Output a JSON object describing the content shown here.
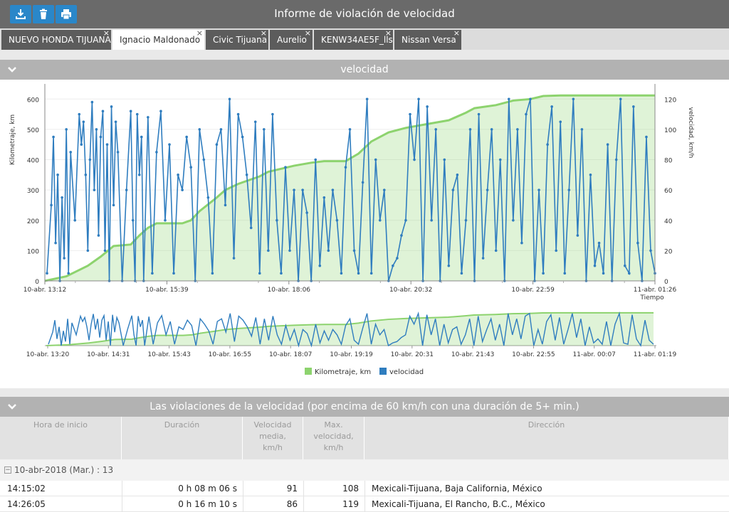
{
  "toolbar": {
    "title": "Informe de violación de velocidad",
    "download_icon": "download-icon",
    "delete_icon": "trash-icon",
    "print_icon": "print-icon"
  },
  "tabs": [
    {
      "label": "NUEVO HONDA TIJUANA",
      "close": "×"
    },
    {
      "label": "Ignacio Maldonado",
      "close": "×"
    },
    {
      "label": "Civic Tijuana",
      "close": "×"
    },
    {
      "label": "Aurelio",
      "close": "×"
    },
    {
      "label": "KENW34AE5F_lls",
      "close": "×"
    },
    {
      "label": "Nissan Versa",
      "close": "×"
    }
  ],
  "chart_section": {
    "title": "velocidad"
  },
  "chart_data": {
    "type": "line",
    "left_axis": {
      "label": "Kilometraje, km",
      "ticks": [
        "0",
        "100",
        "200",
        "300",
        "400",
        "500",
        "600"
      ],
      "ylim": [
        0,
        650
      ]
    },
    "right_axis": {
      "label": "velocidad, km/h",
      "ticks": [
        "0",
        "20",
        "40",
        "60",
        "80",
        "100",
        "120"
      ],
      "ylim": [
        0,
        130
      ]
    },
    "x_label": "Tiempo",
    "x_ticks": [
      "10-abr. 13:12",
      "10-abr. 15:39",
      "10-abr. 18:06",
      "10-abr. 20:32",
      "10-abr. 22:59",
      "11-abr. 01:26"
    ],
    "navigator_ticks": [
      "10-abr. 13:20",
      "10-abr. 14:31",
      "10-abr. 15:43",
      "10-abr. 16:55",
      "10-abr. 18:07",
      "10-abr. 19:19",
      "10-abr. 20:31",
      "10-abr. 21:43",
      "10-abr. 22:55",
      "11-abr. 00:07",
      "11-abr. 01:19"
    ],
    "series": [
      {
        "name": "Kilometraje, km",
        "color": "#8dd36e",
        "axis": "left",
        "x": [
          0,
          0.5,
          1,
          1.3,
          1.6,
          2,
          2.2,
          2.4,
          2.6,
          3,
          3.2,
          3.4,
          3.6,
          4,
          4.2,
          4.5,
          5,
          5.2,
          5.5,
          5.8,
          6,
          6.2,
          6.5,
          7,
          7.3,
          7.6,
          8,
          8.4,
          8.8,
          9,
          9.4,
          9.8,
          10,
          10.5,
          10.9,
          11.3,
          11.6,
          12,
          12.2,
          12.4,
          12.6,
          12.8,
          13,
          13.2,
          13.5,
          13.9,
          14.2
        ],
        "y": [
          0,
          15,
          50,
          80,
          115,
          120,
          150,
          175,
          190,
          190,
          190,
          200,
          230,
          275,
          300,
          320,
          345,
          360,
          370,
          380,
          385,
          390,
          395,
          395,
          420,
          460,
          490,
          505,
          515,
          520,
          530,
          555,
          570,
          580,
          595,
          600,
          610,
          612,
          612,
          612,
          612,
          612,
          612,
          612,
          612,
          612,
          612
        ]
      },
      {
        "name": "velocidad",
        "color": "#2f7dbf",
        "axis": "right",
        "x": [
          0.05,
          0.15,
          0.2,
          0.25,
          0.3,
          0.35,
          0.4,
          0.45,
          0.5,
          0.55,
          0.6,
          0.7,
          0.8,
          0.85,
          0.9,
          0.95,
          1.0,
          1.05,
          1.1,
          1.15,
          1.2,
          1.25,
          1.3,
          1.35,
          1.4,
          1.45,
          1.5,
          1.55,
          1.6,
          1.65,
          1.7,
          1.8,
          1.9,
          2.0,
          2.05,
          2.1,
          2.15,
          2.2,
          2.25,
          2.3,
          2.4,
          2.5,
          2.6,
          2.7,
          2.8,
          2.9,
          3.0,
          3.1,
          3.2,
          3.3,
          3.4,
          3.5,
          3.6,
          3.7,
          3.8,
          3.9,
          4.0,
          4.1,
          4.2,
          4.3,
          4.4,
          4.5,
          4.6,
          4.7,
          4.8,
          4.9,
          5.0,
          5.1,
          5.2,
          5.3,
          5.4,
          5.5,
          5.6,
          5.7,
          5.8,
          5.9,
          6.0,
          6.1,
          6.2,
          6.3,
          6.4,
          6.5,
          6.6,
          6.7,
          6.8,
          6.9,
          7.0,
          7.1,
          7.2,
          7.3,
          7.4,
          7.5,
          7.6,
          7.7,
          7.8,
          7.9,
          8.0,
          8.1,
          8.2,
          8.3,
          8.4,
          8.5,
          8.6,
          8.7,
          8.8,
          8.9,
          9.0,
          9.1,
          9.2,
          9.3,
          9.4,
          9.5,
          9.6,
          9.7,
          9.8,
          9.9,
          10.0,
          10.1,
          10.2,
          10.3,
          10.4,
          10.5,
          10.6,
          10.7,
          10.8,
          10.9,
          11.0,
          11.1,
          11.2,
          11.3,
          11.4,
          11.5,
          11.6,
          11.7,
          11.8,
          11.9,
          12.0,
          12.1,
          12.2,
          12.3,
          12.4,
          12.5,
          12.6,
          12.7,
          12.8,
          12.9,
          13.0,
          13.1,
          13.2,
          13.3,
          13.4,
          13.5,
          13.6,
          13.7,
          13.8,
          13.9,
          14.0,
          14.1,
          14.2
        ],
        "y": [
          5,
          50,
          95,
          25,
          70,
          0,
          55,
          15,
          100,
          5,
          85,
          40,
          110,
          90,
          105,
          70,
          20,
          80,
          118,
          60,
          100,
          30,
          95,
          112,
          20,
          90,
          0,
          115,
          50,
          105,
          85,
          0,
          60,
          112,
          40,
          0,
          110,
          70,
          95,
          0,
          108,
          5,
          85,
          112,
          40,
          90,
          5,
          70,
          60,
          95,
          75,
          0,
          100,
          80,
          55,
          5,
          90,
          100,
          50,
          120,
          15,
          110,
          95,
          70,
          35,
          105,
          5,
          100,
          20,
          110,
          40,
          5,
          75,
          20,
          60,
          0,
          60,
          45,
          0,
          80,
          10,
          55,
          20,
          60,
          40,
          5,
          75,
          100,
          20,
          5,
          65,
          120,
          5,
          80,
          40,
          60,
          0,
          10,
          15,
          30,
          40,
          110,
          80,
          120,
          0,
          115,
          40,
          100,
          0,
          80,
          10,
          60,
          70,
          5,
          40,
          100,
          0,
          110,
          15,
          60,
          100,
          20,
          80,
          0,
          120,
          40,
          100,
          25,
          110,
          120,
          0,
          60,
          5,
          90,
          115,
          20,
          105,
          5,
          60,
          120,
          30,
          100,
          0,
          70,
          10,
          25,
          5,
          90,
          0,
          80,
          120,
          10,
          5,
          115,
          25,
          0,
          95,
          20,
          5
        ]
      }
    ]
  },
  "violations_section": {
    "title": "Las violaciones de la velocidad (por encima de 60 km/h con una duración de 5+ min.)"
  },
  "table": {
    "headers": [
      {
        "line1": "Hora de inicio",
        "line2": "",
        "line3": ""
      },
      {
        "line1": "Duración",
        "line2": "",
        "line3": ""
      },
      {
        "line1": "Velocidad",
        "line2": "media,",
        "line3": "km/h"
      },
      {
        "line1": "Max.",
        "line2": "velocidad,",
        "line3": "km/h"
      },
      {
        "line1": "Dirección",
        "line2": "",
        "line3": ""
      }
    ],
    "group": {
      "toggle": "−",
      "label": "10-abr-2018 (Mar.) : 13"
    },
    "rows": [
      {
        "start": "14:15:02",
        "duration": "0 h 08 m 06 s",
        "avg": "91",
        "max": "108",
        "address": "Mexicali-Tijuana, Baja California, México"
      },
      {
        "start": "14:26:05",
        "duration": "0 h 16 m 10 s",
        "avg": "86",
        "max": "119",
        "address": "Mexicali-Tijuana, El Rancho, B.C., México"
      }
    ]
  }
}
